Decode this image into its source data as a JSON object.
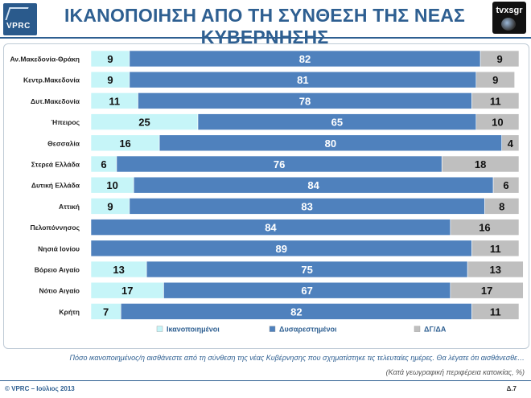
{
  "header": {
    "title": "ΙΚΑΝΟΠΟΙΗΣΗ ΑΠΟ ΤΗ ΣΥΝΘΕΣΗ ΤΗΣ ΝΕΑΣ ΚΥΒΕΡΝΗΣΗΣ",
    "vprc_logo_text": "V",
    "vprc_logo_sub": "PRC",
    "tvxs_logo_text": "tvxsgr"
  },
  "colors": {
    "satisfied": "#c6f5f8",
    "dissatisfied": "#4f81bd",
    "dk": "#bfbfbf",
    "title": "#2e5f91"
  },
  "chart_data": {
    "type": "bar",
    "orientation": "horizontal",
    "stacked": true,
    "xlim": [
      0,
      100
    ],
    "categories": [
      "Αν.Μακεδονία-Θράκη",
      "Κεντρ.Μακεδονία",
      "Δυτ.Μακεδονία",
      "Ήπειρος",
      "Θεσσαλία",
      "Στερεά Ελλάδα",
      "Δυτική Ελλάδα",
      "Αττική",
      "Πελοπόννησος",
      "Νησιά Ιονίου",
      "Βόρειο Αιγαίο",
      "Νότιο Αιγαίο",
      "Κρήτη"
    ],
    "series": [
      {
        "name": "Ικανοποιημένοι",
        "values": [
          9,
          9,
          11,
          25,
          16,
          6,
          10,
          9,
          0,
          0,
          13,
          17,
          7
        ]
      },
      {
        "name": "Δυσαρεστημένοι",
        "values": [
          82,
          81,
          78,
          65,
          80,
          76,
          84,
          83,
          84,
          89,
          75,
          67,
          82
        ]
      },
      {
        "name": "ΔΓ/ΔΑ",
        "values": [
          9,
          9,
          11,
          10,
          4,
          18,
          6,
          8,
          16,
          11,
          13,
          17,
          11
        ]
      }
    ],
    "legend": "bottom"
  },
  "footer": {
    "question": "Πόσο ικανοποιημένος/η αισθάνεστε από τη σύνθεση της νέας Κυβέρνησης που σχηματίστηκε τις τελευταίες ημέρες. Θα λέγατε ότι αισθάνεσθε…",
    "note": "(Κατά γεωγραφική περιφέρεια κατοικίας, %)",
    "copyright": "© VPRC – Ιούλιος 2013",
    "page": "Δ.7"
  }
}
